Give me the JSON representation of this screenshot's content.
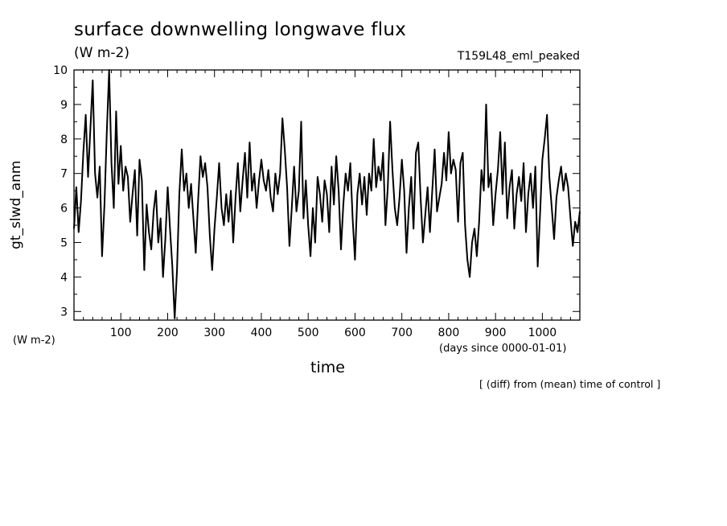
{
  "chart_data": {
    "type": "line",
    "title": "surface downwelling longwave flux",
    "units": "(W m-2)",
    "run_label": "T159L48_eml_peaked",
    "ylabel": "gt_slwd_anm",
    "yunits": "(W m-2)",
    "xlabel": "time",
    "xunits": "(days since 0000-01-01)",
    "note": "[ (diff) from (mean) time of control ]",
    "xlim": [
      0,
      1080
    ],
    "ylim": [
      2.75,
      10
    ],
    "xticks": [
      100,
      200,
      300,
      400,
      500,
      600,
      700,
      800,
      900,
      1000
    ],
    "yticks": [
      3,
      4,
      5,
      6,
      7,
      8,
      9,
      10
    ],
    "grid": false,
    "series": [
      {
        "line_color": "#000000",
        "x": [
          0,
          5,
          10,
          15,
          20,
          25,
          30,
          35,
          40,
          45,
          50,
          55,
          60,
          65,
          70,
          75,
          80,
          85,
          90,
          95,
          100,
          105,
          110,
          115,
          120,
          125,
          130,
          135,
          140,
          145,
          150,
          155,
          160,
          165,
          170,
          175,
          180,
          185,
          190,
          195,
          200,
          205,
          210,
          215,
          220,
          225,
          230,
          235,
          240,
          245,
          250,
          255,
          260,
          265,
          270,
          275,
          280,
          285,
          290,
          295,
          300,
          305,
          310,
          315,
          320,
          325,
          330,
          335,
          340,
          345,
          350,
          355,
          360,
          365,
          370,
          375,
          380,
          385,
          390,
          395,
          400,
          405,
          410,
          415,
          420,
          425,
          430,
          435,
          440,
          445,
          450,
          455,
          460,
          465,
          470,
          475,
          480,
          485,
          490,
          495,
          500,
          505,
          510,
          515,
          520,
          525,
          530,
          535,
          540,
          545,
          550,
          555,
          560,
          565,
          570,
          575,
          580,
          585,
          590,
          595,
          600,
          605,
          610,
          615,
          620,
          625,
          630,
          635,
          640,
          645,
          650,
          655,
          660,
          665,
          670,
          675,
          680,
          685,
          690,
          695,
          700,
          705,
          710,
          715,
          720,
          725,
          730,
          735,
          740,
          745,
          750,
          755,
          760,
          765,
          770,
          775,
          780,
          785,
          790,
          795,
          800,
          805,
          810,
          815,
          820,
          825,
          830,
          835,
          840,
          845,
          850,
          855,
          860,
          865,
          870,
          875,
          880,
          885,
          890,
          895,
          900,
          905,
          910,
          915,
          920,
          925,
          930,
          935,
          940,
          945,
          950,
          955,
          960,
          965,
          970,
          975,
          980,
          985,
          990,
          995,
          1000,
          1005,
          1010,
          1015,
          1020,
          1025,
          1030,
          1035,
          1040,
          1045,
          1050,
          1055,
          1060,
          1065,
          1070,
          1075,
          1080
        ],
        "y": [
          5.4,
          6.6,
          5.3,
          6.2,
          7.6,
          8.7,
          6.9,
          8.3,
          9.7,
          7.0,
          6.3,
          7.2,
          4.6,
          6.1,
          8.2,
          10.0,
          7.3,
          6.0,
          8.8,
          6.7,
          7.8,
          6.5,
          7.2,
          6.9,
          5.6,
          6.4,
          7.1,
          5.2,
          7.4,
          6.8,
          4.2,
          6.1,
          5.3,
          4.8,
          5.9,
          6.5,
          5.0,
          5.7,
          4.0,
          5.1,
          6.6,
          5.4,
          4.3,
          2.8,
          4.2,
          6.4,
          7.7,
          6.5,
          7.0,
          6.0,
          6.7,
          5.7,
          4.7,
          6.2,
          7.5,
          6.9,
          7.3,
          6.6,
          5.2,
          4.2,
          5.4,
          6.3,
          7.3,
          6.0,
          5.5,
          6.4,
          5.6,
          6.5,
          5.0,
          6.3,
          7.3,
          5.9,
          6.8,
          7.6,
          6.3,
          7.9,
          6.5,
          7.0,
          6.0,
          6.8,
          7.4,
          6.8,
          6.5,
          7.1,
          6.3,
          5.9,
          7.0,
          6.4,
          7.0,
          8.6,
          7.7,
          6.6,
          4.9,
          6.0,
          7.2,
          5.9,
          6.5,
          8.5,
          5.7,
          6.8,
          5.5,
          4.6,
          6.0,
          5.0,
          6.9,
          6.4,
          5.6,
          6.8,
          6.4,
          5.3,
          7.2,
          6.1,
          7.5,
          6.5,
          4.8,
          6.1,
          7.0,
          6.5,
          7.3,
          5.7,
          4.5,
          6.4,
          7.0,
          6.1,
          6.9,
          5.8,
          7.0,
          6.5,
          8.0,
          6.6,
          7.2,
          6.8,
          7.6,
          5.5,
          6.6,
          8.5,
          7.1,
          6.0,
          5.5,
          6.3,
          7.4,
          6.5,
          4.7,
          6.0,
          6.9,
          5.4,
          7.6,
          7.9,
          6.3,
          5.0,
          5.8,
          6.6,
          5.3,
          6.5,
          7.7,
          5.9,
          6.3,
          6.7,
          7.6,
          6.8,
          8.2,
          7.0,
          7.4,
          7.1,
          5.6,
          7.3,
          7.6,
          5.5,
          4.5,
          4.0,
          5.0,
          5.4,
          4.6,
          5.6,
          7.1,
          6.5,
          9.0,
          6.6,
          7.0,
          5.5,
          6.4,
          7.1,
          8.2,
          6.4,
          7.9,
          5.7,
          6.6,
          7.1,
          5.4,
          6.4,
          6.9,
          6.2,
          7.3,
          5.3,
          6.4,
          7.0,
          6.0,
          7.2,
          4.3,
          5.8,
          7.4,
          8.0,
          8.7,
          6.9,
          6.0,
          5.1,
          6.3,
          6.8,
          7.2,
          6.5,
          7.0,
          6.6,
          5.7,
          4.9,
          5.6,
          5.3,
          5.9
        ]
      }
    ]
  }
}
